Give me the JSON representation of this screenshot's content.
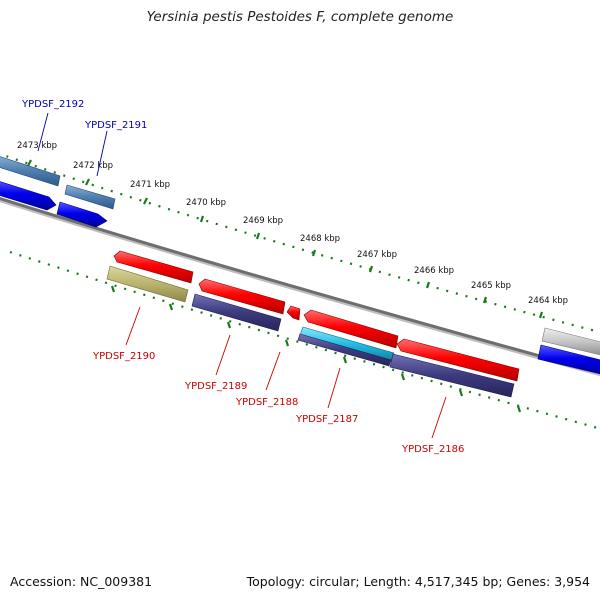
{
  "title": "Yersinia pestis Pestoides F, complete genome",
  "footer": {
    "accession": "Accession: NC_009381",
    "summary": "Topology: circular; Length: 4,517,345 bp; Genes: 3,954"
  },
  "scale_labels": [
    "2473 kbp",
    "2472 kbp",
    "2471 kbp",
    "2470 kbp",
    "2469 kbp",
    "2468 kbp",
    "2467 kbp",
    "2466 kbp",
    "2465 kbp",
    "2464 kbp"
  ],
  "genes": [
    {
      "name": "YPDSF_2192",
      "color": "#0000aa"
    },
    {
      "name": "YPDSF_2191",
      "color": "#0000aa"
    },
    {
      "name": "YPDSF_2190",
      "color": "#cc0000"
    },
    {
      "name": "YPDSF_2189",
      "color": "#cc0000"
    },
    {
      "name": "YPDSF_2188",
      "color": "#cc0000"
    },
    {
      "name": "YPDSF_2187",
      "color": "#cc0000"
    },
    {
      "name": "YPDSF_2186",
      "color": "#cc0000"
    }
  ],
  "colors": {
    "backbone": "#777777",
    "scale_ticks": "#1a7a1a",
    "forward_cds": "#ff0000",
    "reverse_cds": "#0000ee",
    "blast_navy": "#3c3a7e",
    "blast_steel": "#4f7fb0",
    "blast_khaki": "#b9b36e",
    "blast_cyan": "#22bde6",
    "blast_gray": "#bfbfbf"
  }
}
